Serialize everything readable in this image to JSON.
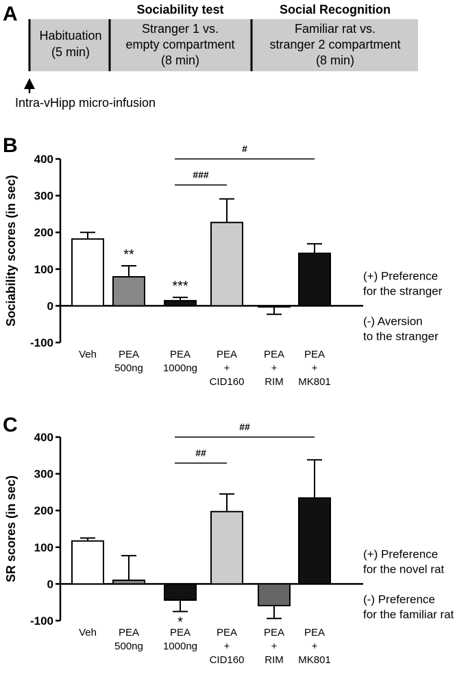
{
  "panel_a": {
    "label": "A",
    "headers": [
      "Sociability test",
      "Social Recognition"
    ],
    "boxes": [
      [
        "Habituation",
        "(5 min)"
      ],
      [
        "Stranger 1 vs.",
        "empty compartment",
        "(8 min)"
      ],
      [
        "Familiar rat vs.",
        "stranger 2 compartment",
        "(8 min)"
      ]
    ],
    "infusion_label": "Intra-vHipp micro-infusion",
    "colors": {
      "box_fill": "#cccccc",
      "divider": "#000000"
    }
  },
  "chart_data": [
    {
      "panel_label": "B",
      "type": "bar",
      "ylabel": "Sociability scores (in sec)",
      "ylim": [
        -100,
        400
      ],
      "yticks": [
        -100,
        0,
        100,
        200,
        300,
        400
      ],
      "categories": [
        [
          "Veh"
        ],
        [
          "PEA",
          "500ng"
        ],
        [
          "PEA",
          "1000ng"
        ],
        [
          "PEA",
          "+",
          "CID160"
        ],
        [
          "PEA",
          "+",
          "RIM"
        ],
        [
          "PEA",
          "+",
          "MK801"
        ]
      ],
      "values": [
        182,
        79,
        14,
        227,
        -3,
        143
      ],
      "errors": [
        18,
        30,
        9,
        64,
        20,
        26
      ],
      "bar_colors": [
        "#ffffff",
        "#888888",
        "#111111",
        "#cccccc",
        "#666666",
        "#111111"
      ],
      "significance": [
        "",
        "**",
        "***",
        "",
        "",
        ""
      ],
      "comparisons": [
        {
          "from": 2,
          "to": 3,
          "label": "###"
        },
        {
          "from": 2,
          "to": 5,
          "label": "#"
        }
      ],
      "annotations": {
        "positive": [
          "(+) Preference",
          "for the stranger"
        ],
        "negative": [
          "(-) Aversion",
          "to the stranger"
        ]
      }
    },
    {
      "panel_label": "C",
      "type": "bar",
      "ylabel": "SR scores (in sec)",
      "ylim": [
        -100,
        400
      ],
      "yticks": [
        -100,
        0,
        100,
        200,
        300,
        400
      ],
      "categories": [
        [
          "Veh"
        ],
        [
          "PEA",
          "500ng"
        ],
        [
          "PEA",
          "1000ng"
        ],
        [
          "PEA",
          "+",
          "CID160"
        ],
        [
          "PEA",
          "+",
          "RIM"
        ],
        [
          "PEA",
          "+",
          "MK801"
        ]
      ],
      "values": [
        117,
        10,
        -44,
        197,
        -59,
        234
      ],
      "errors": [
        8,
        67,
        31,
        48,
        35,
        104
      ],
      "bar_colors": [
        "#ffffff",
        "#888888",
        "#111111",
        "#cccccc",
        "#666666",
        "#111111"
      ],
      "significance": [
        "",
        "",
        "*",
        "",
        "",
        ""
      ],
      "comparisons": [
        {
          "from": 2,
          "to": 3,
          "label": "##"
        },
        {
          "from": 2,
          "to": 5,
          "label": "##"
        }
      ],
      "annotations": {
        "positive": [
          "(+) Preference",
          "for the novel rat"
        ],
        "negative": [
          "(-) Preference",
          "for the familiar rat"
        ]
      }
    }
  ]
}
